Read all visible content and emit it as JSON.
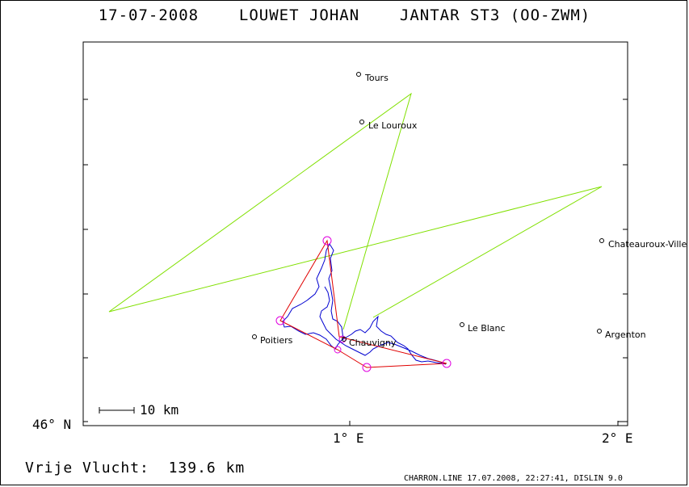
{
  "title": "17-07-2008    LOUWET JOHAN    JANTAR ST3 (OO-ZWM)",
  "axis": {
    "y_label": "46° N",
    "x_labels": [
      "1° E",
      "2° E"
    ]
  },
  "scale_bar": {
    "label": "10 km"
  },
  "towns": [
    {
      "name": "Tours"
    },
    {
      "name": "Le Louroux"
    },
    {
      "name": "Chateauroux-Ville"
    },
    {
      "name": "Le Blanc"
    },
    {
      "name": "Argenton"
    },
    {
      "name": "Poitiers"
    },
    {
      "name": "Chauvigny"
    }
  ],
  "colors": {
    "task_line": "#80e000",
    "flight_triangle": "#e00000",
    "flight_track": "#0000d0",
    "turnpoint": "#e000e0"
  },
  "footer": {
    "distance_label": "Vrije Vlucht:",
    "distance_value": "139.6 km",
    "credits": "CHARRON.LINE 17.07.2008, 22:27:41, DISLIN 9.0"
  }
}
